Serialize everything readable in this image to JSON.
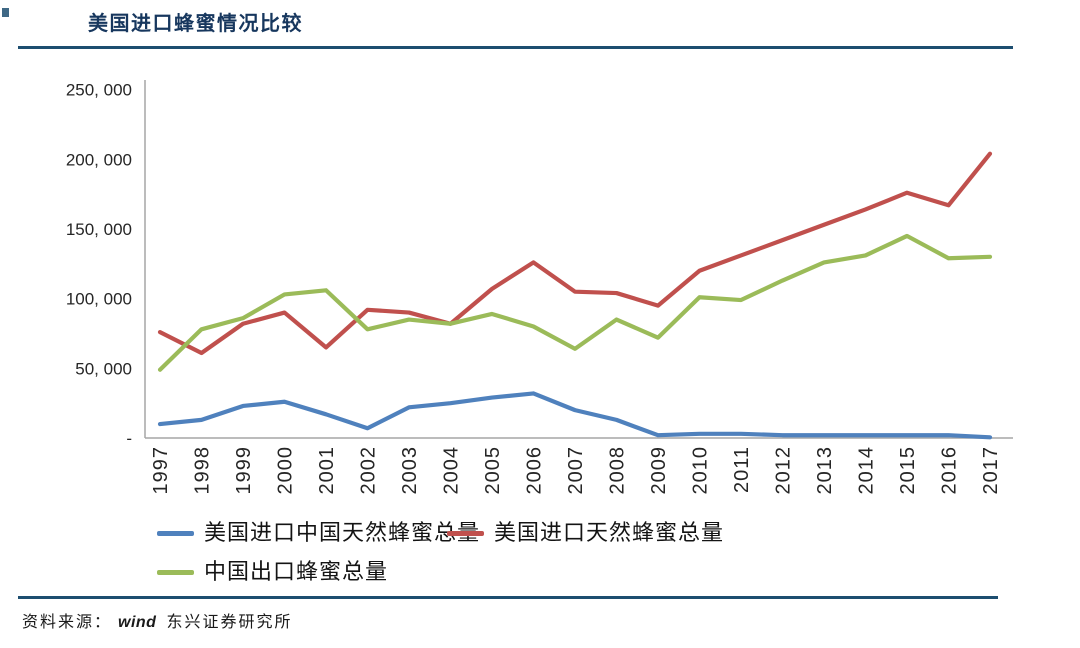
{
  "header": {
    "title": "美国进口蜂蜜情况比较"
  },
  "chart_data": {
    "type": "line",
    "title": "美国进口蜂蜜情况比较",
    "x": [
      1997,
      1998,
      1999,
      2000,
      2001,
      2002,
      2003,
      2004,
      2005,
      2006,
      2007,
      2008,
      2009,
      2010,
      2011,
      2012,
      2013,
      2014,
      2015,
      2016,
      2017
    ],
    "series": [
      {
        "name": "美国进口中国天然蜂蜜总量",
        "color": "#4F81BD",
        "values": [
          10000,
          13000,
          23000,
          26000,
          17000,
          7000,
          22000,
          25000,
          29000,
          32000,
          20000,
          13000,
          2000,
          3000,
          3000,
          2000,
          2000,
          2000,
          2000,
          2000,
          500
        ]
      },
      {
        "name": "美国进口天然蜂蜜总量",
        "color": "#C0504D",
        "values": [
          76000,
          61000,
          82000,
          90000,
          65000,
          92000,
          90000,
          82000,
          107000,
          126000,
          105000,
          104000,
          95000,
          120000,
          131000,
          142000,
          153000,
          164000,
          176000,
          167000,
          204000
        ]
      },
      {
        "name": "中国出口蜂蜜总量",
        "color": "#9BBB59",
        "values": [
          49000,
          78000,
          86000,
          103000,
          106000,
          78000,
          85000,
          82000,
          89000,
          80000,
          64000,
          85000,
          72000,
          101000,
          99000,
          113000,
          126000,
          131000,
          145000,
          129000,
          130000
        ]
      }
    ],
    "ylim": [
      0,
      250000
    ],
    "ytick_step": 50000,
    "ytick_labels": [
      "-",
      "50, 000",
      "100, 000",
      "150, 000",
      "200, 000",
      "250, 000"
    ],
    "xlabel": "",
    "ylabel": "",
    "grid": false,
    "legend_position": "bottom"
  },
  "footer": {
    "source_label": "资料来源：",
    "source_name": "wind",
    "source_org": "东兴证券研究所"
  },
  "colors": {
    "title_navy": "#17375E",
    "rule_navy": "#1D4E70",
    "axis_gray": "#A6A6A6"
  }
}
